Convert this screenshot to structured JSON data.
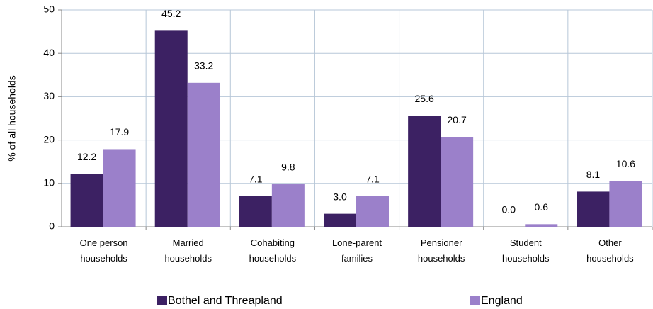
{
  "chart_data": {
    "type": "bar",
    "y_label": "% of all households",
    "categories": [
      "One person households",
      "Married households",
      "Cohabiting households",
      "Lone-parent families",
      "Pensioner households",
      "Student households",
      "Other households"
    ],
    "series": [
      {
        "name": "Bothel and Threapland",
        "color": "#3c2163",
        "values": [
          12.2,
          45.2,
          7.1,
          3,
          25.6,
          0,
          8.1
        ],
        "value_labels": [
          "12.2",
          "45.2",
          "7.1",
          "3.0",
          "25.6",
          "0.0",
          "8.1"
        ]
      },
      {
        "name": "England",
        "color": "#9b80ca",
        "values": [
          17.9,
          33.2,
          9.8,
          7.1,
          20.7,
          0.6,
          10.6
        ],
        "value_labels": [
          "17.9",
          "33.2",
          "9.8",
          "7.1",
          "20.7",
          "0.6",
          "10.6"
        ]
      }
    ],
    "ylim": [
      0,
      50
    ],
    "yticks": [
      0,
      10,
      20,
      30,
      40,
      50
    ],
    "grid": true
  }
}
